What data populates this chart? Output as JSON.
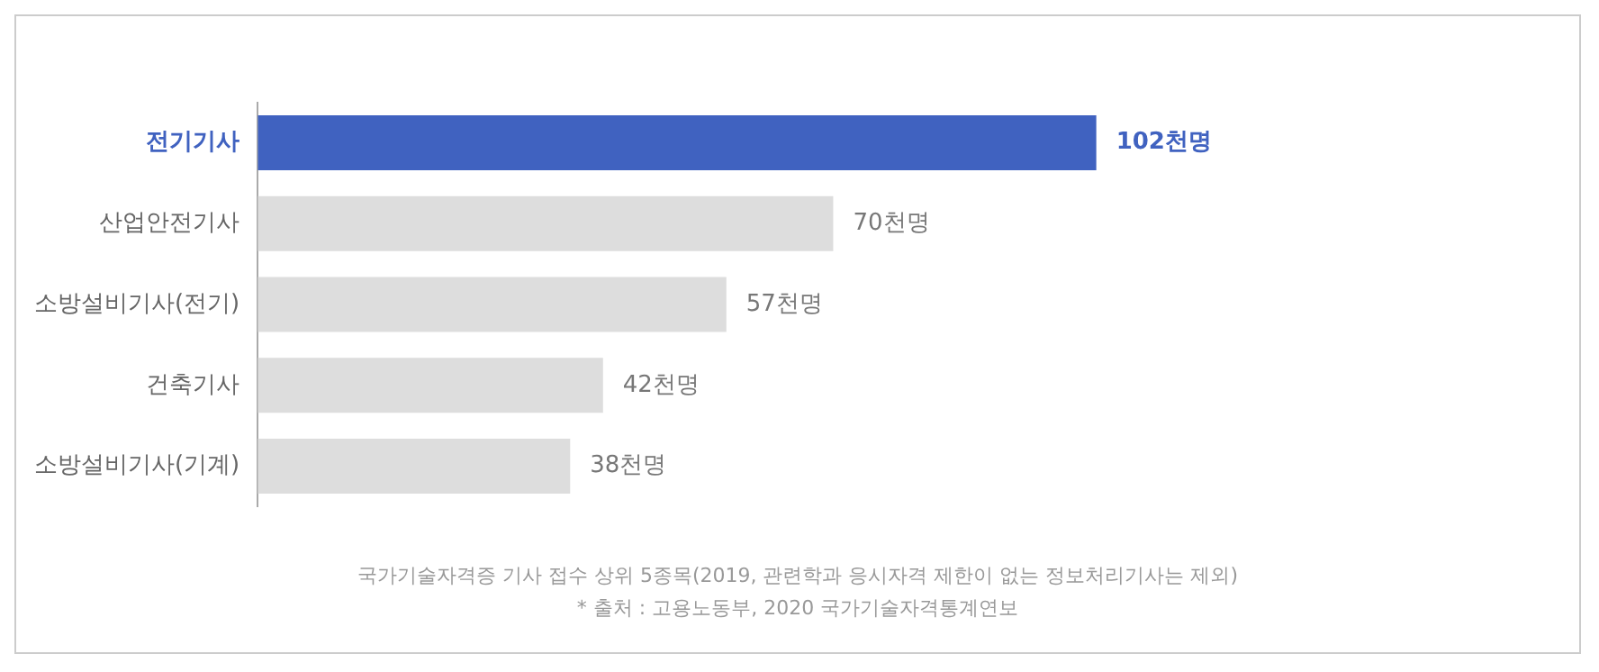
{
  "chart_data": {
    "type": "bar",
    "orientation": "horizontal",
    "categories": [
      "전기기사",
      "산업안전기사",
      "소방설비기사(전기)",
      "건축기사",
      "소방설비기사(기계)"
    ],
    "values": [
      102,
      70,
      57,
      42,
      38
    ],
    "colors": [
      "#4062c0",
      "#dddddd",
      "#dddddd",
      "#dddddd",
      "#dddddd"
    ],
    "value_labels": [
      "102천명",
      "70천명",
      "57천명",
      "42천명",
      "38천명"
    ],
    "grid": false,
    "legend": false,
    "annotations": [
      "국가기술자격증 기사 접수 상위 5종목(2019, 관련학과 응시자격 제한이 없는 정보처리기사는 제외)",
      "* 출처 : 고용노동부, 2020 국가기술자격통계연보"
    ]
  }
}
